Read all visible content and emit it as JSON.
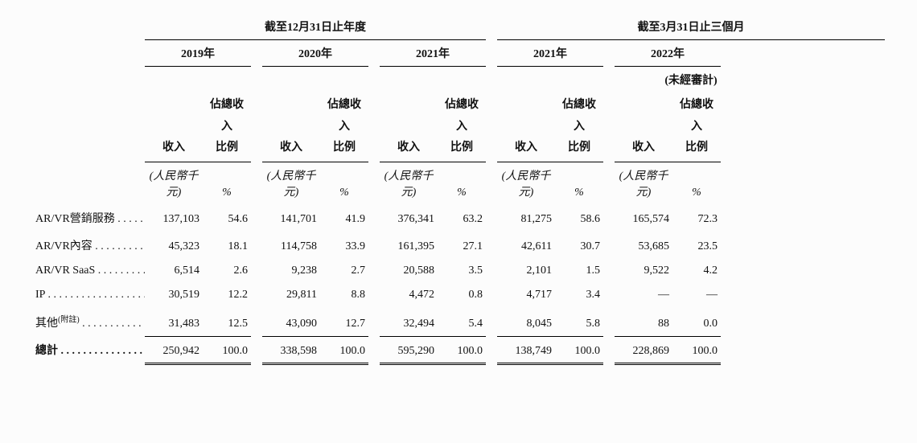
{
  "headers": {
    "group1": "截至12月31日止年度",
    "group2": "截至3月31日止三個月",
    "years": [
      "2019年",
      "2020年",
      "2021年",
      "2021年",
      "2022年"
    ],
    "unaudited": "(未經審計)",
    "sub1": "收入",
    "sub2_line1": "佔總收入",
    "sub2_line2": "比例",
    "unit1": "(人民幣千元)",
    "unit2": "%"
  },
  "rows": [
    {
      "label": "AR/VR營銷服務",
      "vals": [
        "137,103",
        "54.6",
        "141,701",
        "41.9",
        "376,341",
        "63.2",
        "81,275",
        "58.6",
        "165,574",
        "72.3"
      ]
    },
    {
      "label": "AR/VR內容",
      "vals": [
        "45,323",
        "18.1",
        "114,758",
        "33.9",
        "161,395",
        "27.1",
        "42,611",
        "30.7",
        "53,685",
        "23.5"
      ]
    },
    {
      "label": "AR/VR SaaS",
      "vals": [
        "6,514",
        "2.6",
        "9,238",
        "2.7",
        "20,588",
        "3.5",
        "2,101",
        "1.5",
        "9,522",
        "4.2"
      ]
    },
    {
      "label": "IP",
      "vals": [
        "30,519",
        "12.2",
        "29,811",
        "8.8",
        "4,472",
        "0.8",
        "4,717",
        "3.4",
        "—",
        "—"
      ]
    },
    {
      "label_html": "其他<sup>(附註)</sup>",
      "vals": [
        "31,483",
        "12.5",
        "43,090",
        "12.7",
        "32,494",
        "5.4",
        "8,045",
        "5.8",
        "88",
        "0.0"
      ]
    }
  ],
  "total": {
    "label": "總計",
    "vals": [
      "250,942",
      "100.0",
      "338,598",
      "100.0",
      "595,290",
      "100.0",
      "138,749",
      "100.0",
      "228,869",
      "100.0"
    ]
  },
  "col_widths": {
    "label": 140,
    "gap": 10,
    "val": 72,
    "pct": 60
  }
}
